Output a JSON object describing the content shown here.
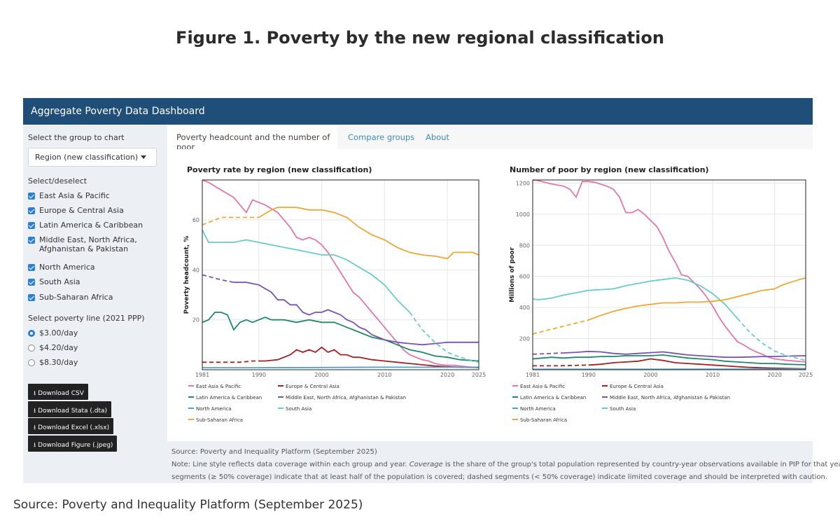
{
  "figure_title": "Figure 1. Poverty by the new regional classification",
  "dashboard_title": "Aggregate Poverty Data Dashboard",
  "sidebar": {
    "group_label": "Select the group to chart",
    "group_value": "Region (new classification)",
    "select_label": "Select/deselect",
    "regions": [
      {
        "label": "East Asia & Pacific",
        "line2": ""
      },
      {
        "label": "Europe & Central Asia",
        "line2": ""
      },
      {
        "label": "Latin America & Caribbean",
        "line2": ""
      },
      {
        "label": "Middle East, North Africa,",
        "line2": "Afghanistan & Pakistan"
      },
      {
        "label": "North America",
        "line2": ""
      },
      {
        "label": "South Asia",
        "line2": ""
      },
      {
        "label": "Sub-Saharan Africa",
        "line2": ""
      }
    ],
    "poverty_line_label": "Select poverty line (2021 PPP)",
    "poverty_lines": [
      "$3.00/day",
      "$4.20/day",
      "$8.30/day"
    ],
    "poverty_line_selected": 0,
    "downloads": [
      "Download CSV",
      "Download Stata (.dta)",
      "Download Excel (.xlsx)",
      "Download Figure (.jpeg)"
    ]
  },
  "tabs": [
    "Poverty headcount and the number of poor",
    "Compare groups",
    "About"
  ],
  "active_tab": 0,
  "source_line": "Source: Poverty and Inequality Platform (September 2025)",
  "note_prefix": "Note: Line style reflects data coverage within each group and year. ",
  "note_italic": "Coverage",
  "note_rest1": " is the share of the group's total population represented by country-year observations available in PIP for that year. Solid",
  "note_line2": "segments (≥ 50% coverage) indicate that at least half of the population is covered; dashed segments (< 50% coverage) indicate limited coverage and should be interpreted with caution.",
  "outer_source": "Source: Poverty and Inequality Platform (September 2025)",
  "colors": {
    "East Asia & Pacific": "#e377a7",
    "Europe & Central Asia": "#a32222",
    "Latin America & Caribbean": "#1e8a6a",
    "Middle East, North Africa, Afghanistan & Pakistan": "#7a52b5",
    "North America": "#4aa3d9",
    "South Asia": "#66cccc",
    "Sub-Saharan Africa": "#f0a830"
  },
  "chart_data": [
    {
      "type": "line",
      "title": "Poverty rate by region (new classification)",
      "xlabel": "",
      "ylabel": "Poverty headcount, %",
      "xlim": [
        1981,
        2025
      ],
      "ylim": [
        0,
        76
      ],
      "x_ticks": [
        1981,
        1990,
        2000,
        2010,
        2020,
        2025
      ],
      "y_ticks": [
        20,
        40,
        60
      ],
      "series": [
        {
          "name": "East Asia & Pacific",
          "x": [
            1981,
            1982,
            1984,
            1986,
            1987,
            1988,
            1989,
            1990,
            1991,
            1993,
            1994,
            1995,
            1996,
            1997,
            1998,
            1999,
            2000,
            2001,
            2002,
            2003,
            2004,
            2005,
            2006,
            2007,
            2008,
            2009,
            2010,
            2011,
            2012,
            2013,
            2014,
            2015,
            2016,
            2017,
            2018,
            2019,
            2020,
            2021,
            2022,
            2023,
            2024,
            2025
          ],
          "y": [
            76,
            75,
            72,
            69,
            66,
            63,
            68,
            67,
            66,
            63,
            60,
            57,
            53,
            52,
            53,
            52,
            50,
            47,
            43,
            39,
            35,
            31,
            29,
            26,
            23,
            20,
            17,
            14,
            11,
            8,
            6,
            5,
            4,
            3.5,
            2.5,
            2,
            1.8,
            1.8,
            1.5,
            1.2,
            1.0,
            0.9
          ],
          "dashed_until": 1981
        },
        {
          "name": "Europe & Central Asia",
          "x": [
            1981,
            1983,
            1985,
            1987,
            1989,
            1990,
            1991,
            1993,
            1995,
            1996,
            1997,
            1998,
            1999,
            2000,
            2001,
            2002,
            2003,
            2004,
            2005,
            2006,
            2008,
            2010,
            2012,
            2014,
            2016,
            2018,
            2020,
            2022,
            2025
          ],
          "y": [
            3,
            3,
            3,
            3,
            3.5,
            3.5,
            3.5,
            4,
            6,
            8,
            7,
            8,
            7,
            9,
            7,
            8,
            6,
            6,
            5,
            5,
            4,
            3.5,
            3,
            2.5,
            2,
            1.5,
            1.2,
            1,
            0.9
          ],
          "dashed_until": 1990
        },
        {
          "name": "Latin America & Caribbean",
          "x": [
            1981,
            1982,
            1983,
            1984,
            1985,
            1986,
            1987,
            1988,
            1989,
            1990,
            1991,
            1992,
            1994,
            1996,
            1998,
            2000,
            2002,
            2003,
            2004,
            2005,
            2006,
            2007,
            2008,
            2010,
            2012,
            2013,
            2014,
            2016,
            2018,
            2020,
            2022,
            2025
          ],
          "y": [
            19,
            20,
            23,
            23,
            22,
            16,
            19,
            20,
            19,
            20,
            21,
            20,
            20,
            19,
            20,
            19,
            19,
            18,
            17,
            16,
            15,
            14,
            13,
            12,
            10,
            9,
            8,
            7,
            5.5,
            5,
            4,
            3.5
          ],
          "dashed_until": 1981
        },
        {
          "name": "Middle East, North Africa, Afghanistan & Pakistan",
          "x": [
            1981,
            1984,
            1986,
            1988,
            1990,
            1992,
            1993,
            1994,
            1995,
            1996,
            1997,
            1998,
            1999,
            2000,
            2001,
            2002,
            2003,
            2004,
            2005,
            2006,
            2007,
            2008,
            2009,
            2010,
            2012,
            2014,
            2016,
            2018,
            2020,
            2022,
            2025
          ],
          "y": [
            38,
            36,
            35,
            35,
            34,
            31,
            28,
            28,
            26,
            26,
            23,
            22,
            23,
            23,
            24,
            23,
            22,
            20,
            19,
            17,
            16,
            14,
            13,
            12,
            11,
            10.5,
            10,
            10.5,
            11,
            11,
            11
          ],
          "dashed_until": 1986
        },
        {
          "name": "North America",
          "x": [
            1981,
            1990,
            2000,
            2010,
            2020,
            2025
          ],
          "y": [
            0.8,
            0.8,
            0.9,
            1.0,
            1.0,
            1.0
          ],
          "dashed_until": 1981
        },
        {
          "name": "South Asia",
          "x": [
            1981,
            1982,
            1984,
            1986,
            1988,
            1990,
            1992,
            1994,
            1996,
            1998,
            2000,
            2002,
            2004,
            2006,
            2008,
            2010,
            2012,
            2014,
            2016,
            2018,
            2020,
            2022,
            2025
          ],
          "y": [
            56,
            51,
            51,
            51,
            52,
            51,
            50,
            49,
            48,
            47,
            46,
            46,
            44,
            41,
            38,
            34,
            28,
            23,
            16,
            11,
            7,
            5,
            3
          ],
          "dashed_until": 2014
        },
        {
          "name": "Sub-Saharan Africa",
          "x": [
            1981,
            1982,
            1984,
            1986,
            1988,
            1990,
            1992,
            1993,
            1994,
            1996,
            1998,
            2000,
            2002,
            2004,
            2006,
            2008,
            2010,
            2012,
            2014,
            2016,
            2018,
            2019,
            2020,
            2021,
            2022,
            2024,
            2025
          ],
          "y": [
            58,
            59,
            61,
            61,
            61,
            61,
            64,
            65,
            65,
            65,
            64,
            64,
            63,
            61,
            57,
            54,
            52,
            49,
            47,
            46,
            45.5,
            45,
            44.5,
            47,
            47,
            47,
            46
          ],
          "dashed_until": 1990
        }
      ]
    },
    {
      "type": "line",
      "title": "Number of poor by region (new classification)",
      "xlabel": "",
      "ylabel": "Millions of poor",
      "xlim": [
        1981,
        2025
      ],
      "ylim": [
        0,
        1220
      ],
      "x_ticks": [
        1981,
        1990,
        2000,
        2010,
        2020,
        2025
      ],
      "y_ticks": [
        200,
        400,
        600,
        800,
        1000,
        1200
      ],
      "series": [
        {
          "name": "East Asia & Pacific",
          "x": [
            1981,
            1982,
            1984,
            1986,
            1987,
            1988,
            1989,
            1990,
            1991,
            1993,
            1994,
            1995,
            1996,
            1997,
            1998,
            1999,
            2000,
            2001,
            2002,
            2003,
            2004,
            2005,
            2006,
            2007,
            2008,
            2009,
            2010,
            2011,
            2012,
            2013,
            2014,
            2015,
            2016,
            2017,
            2018,
            2019,
            2020,
            2022,
            2025
          ],
          "y": [
            1220,
            1215,
            1195,
            1180,
            1160,
            1110,
            1210,
            1210,
            1205,
            1180,
            1160,
            1110,
            1010,
            1010,
            1030,
            1000,
            960,
            920,
            850,
            760,
            690,
            610,
            600,
            560,
            520,
            470,
            410,
            340,
            280,
            230,
            180,
            160,
            135,
            115,
            100,
            80,
            70,
            60,
            50
          ],
          "dashed_until": 1981
        },
        {
          "name": "Europe & Central Asia",
          "x": [
            1981,
            1985,
            1990,
            1992,
            1994,
            1996,
            1998,
            2000,
            2002,
            2004,
            2006,
            2008,
            2010,
            2012,
            2014,
            2016,
            2018,
            2020,
            2022,
            2025
          ],
          "y": [
            25,
            25,
            30,
            35,
            45,
            50,
            55,
            70,
            60,
            45,
            40,
            35,
            30,
            25,
            20,
            15,
            12,
            10,
            8,
            6
          ],
          "dashed_until": 1990
        },
        {
          "name": "Latin America & Caribbean",
          "x": [
            1981,
            1984,
            1986,
            1988,
            1990,
            1992,
            1994,
            1996,
            1998,
            2000,
            2002,
            2004,
            2006,
            2008,
            2010,
            2012,
            2014,
            2016,
            2018,
            2020,
            2022,
            2025
          ],
          "y": [
            70,
            80,
            75,
            80,
            80,
            85,
            85,
            90,
            90,
            90,
            95,
            85,
            75,
            70,
            65,
            55,
            50,
            45,
            40,
            40,
            35,
            32
          ],
          "dashed_until": 1981
        },
        {
          "name": "Middle East, North Africa, Afghanistan & Pakistan",
          "x": [
            1981,
            1984,
            1986,
            1988,
            1990,
            1992,
            1994,
            1996,
            1998,
            2000,
            2002,
            2004,
            2006,
            2008,
            2010,
            2012,
            2014,
            2016,
            2018,
            2020,
            2022,
            2025
          ],
          "y": [
            100,
            105,
            108,
            112,
            118,
            115,
            105,
            100,
            105,
            110,
            115,
            105,
            95,
            90,
            85,
            80,
            80,
            82,
            85,
            85,
            88,
            90
          ],
          "dashed_until": 1986
        },
        {
          "name": "North America",
          "x": [
            1981,
            1990,
            2000,
            2010,
            2020,
            2025
          ],
          "y": [
            3,
            3,
            3,
            4,
            4,
            4
          ],
          "dashed_until": 1981
        },
        {
          "name": "South Asia",
          "x": [
            1981,
            1982,
            1984,
            1986,
            1988,
            1990,
            1992,
            1994,
            1996,
            1998,
            2000,
            2002,
            2004,
            2006,
            2008,
            2010,
            2012,
            2014,
            2016,
            2018,
            2020,
            2022,
            2025
          ],
          "y": [
            455,
            450,
            460,
            480,
            495,
            510,
            515,
            520,
            540,
            555,
            570,
            580,
            590,
            575,
            540,
            490,
            420,
            330,
            240,
            170,
            120,
            90,
            60
          ],
          "dashed_until": 2014
        },
        {
          "name": "Sub-Saharan Africa",
          "x": [
            1981,
            1982,
            1984,
            1986,
            1988,
            1990,
            1992,
            1994,
            1996,
            1998,
            2000,
            2002,
            2004,
            2006,
            2008,
            2010,
            2012,
            2014,
            2016,
            2018,
            2020,
            2021,
            2022,
            2024,
            2025
          ],
          "y": [
            230,
            240,
            260,
            280,
            300,
            320,
            350,
            375,
            395,
            410,
            420,
            430,
            430,
            435,
            435,
            440,
            450,
            470,
            490,
            510,
            520,
            540,
            555,
            580,
            590
          ],
          "dashed_until": 1990
        }
      ]
    }
  ]
}
